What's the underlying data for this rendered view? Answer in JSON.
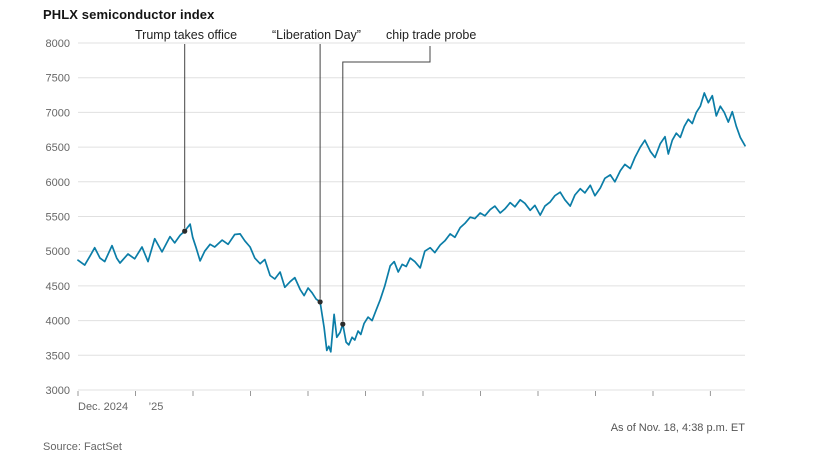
{
  "header": {
    "title": "PHLX semiconductor index"
  },
  "footer": {
    "source": "Source: FactSet",
    "as_of": "As of Nov. 18, 4:38 p.m. ET"
  },
  "chart_data": {
    "type": "line",
    "title": "PHLX semiconductor index",
    "x_range": [
      "Dec. 2024",
      "Nov. 18, 2025"
    ],
    "ylim": [
      3000,
      8000
    ],
    "yticks": [
      3000,
      3500,
      4000,
      4500,
      5000,
      5500,
      6000,
      6500,
      7000,
      7500,
      8000
    ],
    "x_tick_labels": [
      {
        "label": "Dec. 2024",
        "t": 0.0,
        "anchor": "start"
      },
      {
        "label": "’25",
        "t": 0.117,
        "anchor": "middle"
      }
    ],
    "grid": true,
    "legend": "none",
    "line_color": "#0b7da7",
    "annotation_color": "#444444",
    "annotations": [
      {
        "label": "Trump takes office",
        "t": 0.16,
        "value": 5290
      },
      {
        "label": "“Liberation Day”",
        "t": 0.363,
        "value": 4270
      },
      {
        "label": "chip trade probe",
        "t": 0.397,
        "value": 3950
      }
    ],
    "points": [
      [
        0.0,
        4870
      ],
      [
        0.01,
        4800
      ],
      [
        0.018,
        4930
      ],
      [
        0.025,
        5050
      ],
      [
        0.033,
        4900
      ],
      [
        0.04,
        4850
      ],
      [
        0.051,
        5080
      ],
      [
        0.058,
        4900
      ],
      [
        0.063,
        4830
      ],
      [
        0.075,
        4960
      ],
      [
        0.085,
        4890
      ],
      [
        0.096,
        5060
      ],
      [
        0.105,
        4850
      ],
      [
        0.115,
        5180
      ],
      [
        0.126,
        4990
      ],
      [
        0.138,
        5210
      ],
      [
        0.145,
        5120
      ],
      [
        0.153,
        5230
      ],
      [
        0.16,
        5290
      ],
      [
        0.168,
        5390
      ],
      [
        0.172,
        5200
      ],
      [
        0.177,
        5050
      ],
      [
        0.183,
        4860
      ],
      [
        0.19,
        5000
      ],
      [
        0.198,
        5100
      ],
      [
        0.205,
        5060
      ],
      [
        0.216,
        5160
      ],
      [
        0.225,
        5100
      ],
      [
        0.235,
        5240
      ],
      [
        0.243,
        5250
      ],
      [
        0.25,
        5150
      ],
      [
        0.258,
        5060
      ],
      [
        0.265,
        4900
      ],
      [
        0.273,
        4820
      ],
      [
        0.28,
        4880
      ],
      [
        0.288,
        4650
      ],
      [
        0.295,
        4600
      ],
      [
        0.303,
        4700
      ],
      [
        0.31,
        4480
      ],
      [
        0.318,
        4560
      ],
      [
        0.325,
        4620
      ],
      [
        0.333,
        4450
      ],
      [
        0.339,
        4360
      ],
      [
        0.345,
        4470
      ],
      [
        0.351,
        4400
      ],
      [
        0.357,
        4310
      ],
      [
        0.363,
        4270
      ],
      [
        0.369,
        3900
      ],
      [
        0.373,
        3570
      ],
      [
        0.376,
        3630
      ],
      [
        0.379,
        3550
      ],
      [
        0.384,
        4090
      ],
      [
        0.388,
        3760
      ],
      [
        0.393,
        3830
      ],
      [
        0.397,
        3950
      ],
      [
        0.402,
        3690
      ],
      [
        0.406,
        3650
      ],
      [
        0.411,
        3760
      ],
      [
        0.415,
        3720
      ],
      [
        0.42,
        3850
      ],
      [
        0.424,
        3800
      ],
      [
        0.429,
        3960
      ],
      [
        0.435,
        4050
      ],
      [
        0.441,
        4000
      ],
      [
        0.447,
        4150
      ],
      [
        0.453,
        4300
      ],
      [
        0.46,
        4500
      ],
      [
        0.468,
        4790
      ],
      [
        0.474,
        4850
      ],
      [
        0.48,
        4700
      ],
      [
        0.486,
        4810
      ],
      [
        0.492,
        4780
      ],
      [
        0.498,
        4900
      ],
      [
        0.505,
        4850
      ],
      [
        0.513,
        4760
      ],
      [
        0.52,
        5000
      ],
      [
        0.528,
        5050
      ],
      [
        0.535,
        4980
      ],
      [
        0.543,
        5090
      ],
      [
        0.55,
        5150
      ],
      [
        0.558,
        5250
      ],
      [
        0.565,
        5200
      ],
      [
        0.573,
        5340
      ],
      [
        0.58,
        5400
      ],
      [
        0.588,
        5490
      ],
      [
        0.595,
        5470
      ],
      [
        0.603,
        5550
      ],
      [
        0.61,
        5510
      ],
      [
        0.618,
        5600
      ],
      [
        0.625,
        5650
      ],
      [
        0.633,
        5550
      ],
      [
        0.64,
        5610
      ],
      [
        0.648,
        5700
      ],
      [
        0.655,
        5640
      ],
      [
        0.663,
        5740
      ],
      [
        0.67,
        5690
      ],
      [
        0.678,
        5590
      ],
      [
        0.685,
        5660
      ],
      [
        0.693,
        5520
      ],
      [
        0.7,
        5650
      ],
      [
        0.708,
        5710
      ],
      [
        0.715,
        5800
      ],
      [
        0.723,
        5850
      ],
      [
        0.73,
        5740
      ],
      [
        0.738,
        5650
      ],
      [
        0.745,
        5810
      ],
      [
        0.753,
        5900
      ],
      [
        0.76,
        5840
      ],
      [
        0.768,
        5950
      ],
      [
        0.775,
        5800
      ],
      [
        0.783,
        5910
      ],
      [
        0.79,
        6050
      ],
      [
        0.798,
        6100
      ],
      [
        0.805,
        6000
      ],
      [
        0.813,
        6160
      ],
      [
        0.82,
        6250
      ],
      [
        0.828,
        6190
      ],
      [
        0.835,
        6350
      ],
      [
        0.843,
        6500
      ],
      [
        0.85,
        6600
      ],
      [
        0.858,
        6440
      ],
      [
        0.865,
        6350
      ],
      [
        0.873,
        6550
      ],
      [
        0.88,
        6650
      ],
      [
        0.885,
        6400
      ],
      [
        0.891,
        6600
      ],
      [
        0.897,
        6700
      ],
      [
        0.903,
        6640
      ],
      [
        0.909,
        6800
      ],
      [
        0.915,
        6900
      ],
      [
        0.921,
        6840
      ],
      [
        0.927,
        7000
      ],
      [
        0.933,
        7090
      ],
      [
        0.939,
        7280
      ],
      [
        0.945,
        7140
      ],
      [
        0.951,
        7240
      ],
      [
        0.957,
        6950
      ],
      [
        0.963,
        7090
      ],
      [
        0.969,
        7000
      ],
      [
        0.975,
        6860
      ],
      [
        0.981,
        7010
      ],
      [
        0.987,
        6800
      ],
      [
        0.993,
        6640
      ],
      [
        1.0,
        6520
      ]
    ]
  }
}
